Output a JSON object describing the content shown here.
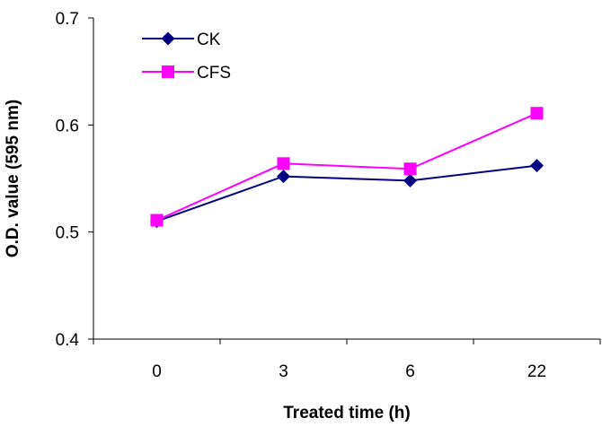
{
  "chart_data": {
    "type": "line",
    "title": "",
    "xlabel": "Treated time (h)",
    "ylabel": "O.D. value (595 nm)",
    "categories": [
      "0",
      "3",
      "6",
      "22"
    ],
    "ylim": [
      0.4,
      0.7
    ],
    "yticks": [
      "0.4",
      "0.5",
      "0.6",
      "0.7"
    ],
    "grid": false,
    "legend_position": "top-left",
    "series": [
      {
        "name": "CK",
        "values": [
          0.51,
          0.552,
          0.548,
          0.562
        ],
        "color": "#000080",
        "marker": "diamond"
      },
      {
        "name": "CFS",
        "values": [
          0.511,
          0.564,
          0.559,
          0.611
        ],
        "color": "#FF00FF",
        "marker": "square"
      }
    ]
  }
}
